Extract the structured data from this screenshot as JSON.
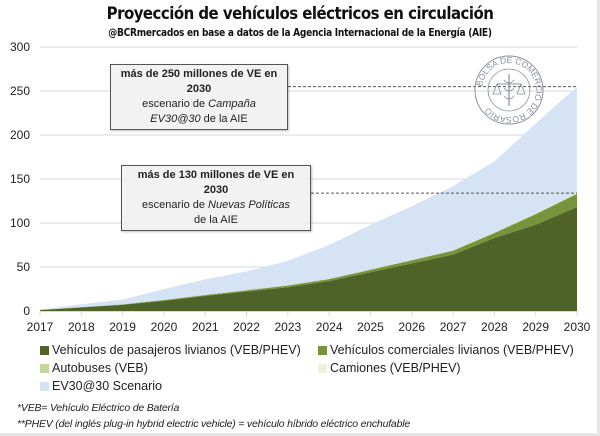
{
  "header": {
    "title": "Proyección de vehículos eléctricos en circulación",
    "subtitle": "@BCRmercados en base a datos de la Agencia Internacional de la Energía (AIE)"
  },
  "annotations": {
    "ev3030": {
      "line1": "más de 250 millones de VE en 2030",
      "line2_prefix": "escenario de ",
      "line2_italic": "Campaña",
      "line3_italic": "EV30@30",
      "line3_suffix": " de la AIE"
    },
    "nps": {
      "line1": "más de 130 millones de VE en 2030",
      "line2_prefix": "escenario de ",
      "line2_italic": "Nuevas Políticas",
      "line3": "de la AIE"
    }
  },
  "watermark": {
    "text": "BOLSA DE COMERCIO DE ROSARIO"
  },
  "footnotes": [
    "*VEB= Vehículo Eléctrico de Batería",
    "**PHEV (del inglés plug-in hybrid electric vehicle) = vehículo híbrido eléctrico enchufable"
  ],
  "chart_data": {
    "type": "area",
    "stacked": true,
    "title": "Proyección de vehículos eléctricos en circulación",
    "xlabel": "",
    "ylabel": "",
    "x": [
      "2017",
      "2018",
      "2019",
      "2020",
      "2021",
      "2022",
      "2023",
      "2024",
      "2025",
      "2026",
      "2027",
      "2028",
      "2029",
      "2030"
    ],
    "yticks": [
      0,
      50,
      100,
      150,
      200,
      250,
      300
    ],
    "ylim": [
      0,
      300
    ],
    "grid": true,
    "legend_position": "bottom",
    "series": [
      {
        "name": "Vehículos de pasajeros livianos (VEB/PHEV)",
        "color": "#4f6228",
        "values": [
          1,
          4,
          7,
          11.5,
          17,
          22,
          27,
          34,
          44,
          54,
          64,
          83,
          98,
          118
        ]
      },
      {
        "name": "Vehículos comerciales livianos (VEB/PHEV)",
        "color": "#77933c",
        "values": [
          0.1,
          0.2,
          0.4,
          0.8,
          1.1,
          1.5,
          1.8,
          2.2,
          2.8,
          3.5,
          4.5,
          5.5,
          12,
          15
        ]
      },
      {
        "name": "Autobuses (VEB)",
        "color": "#c3d69b",
        "values": [
          0.1,
          0.1,
          0.2,
          0.3,
          0.3,
          0.4,
          0.4,
          0.5,
          0.5,
          0.6,
          0.6,
          0.7,
          0.8,
          0.9
        ]
      },
      {
        "name": "Camiones (VEB/PHEV)",
        "color": "#ebf1de",
        "values": [
          0,
          0,
          0,
          0.1,
          0.1,
          0.1,
          0.1,
          0.2,
          0.2,
          0.3,
          0.3,
          0.4,
          0.5,
          0.6
        ]
      },
      {
        "name": "EV30@30 Scenario",
        "color": "#d6e3f4",
        "overlay": true,
        "values": [
          1.5,
          7.6,
          13,
          25,
          36,
          45,
          57,
          75,
          98,
          119,
          142,
          170,
          213,
          255
        ]
      }
    ],
    "reference_lines": [
      {
        "value": 255,
        "style": "dashed",
        "label": "más de 250 millones de VE en 2030"
      },
      {
        "value": 134,
        "style": "dashed",
        "label": "más de 130 millones de VE en 2030"
      }
    ]
  }
}
